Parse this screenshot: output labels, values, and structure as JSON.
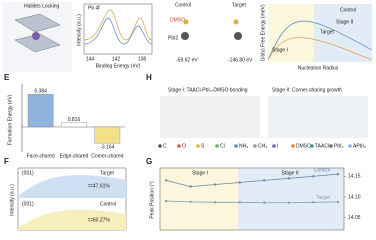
{
  "panel_b": {
    "title": "Halides Locking"
  },
  "panel_c": {
    "label": "Pb 4f",
    "y_label": "Intensity (a.u.)",
    "x_label": "Binding Energy (eV)",
    "xticks": [
      144,
      142,
      138
    ]
  },
  "panel_d": {
    "control": "Control",
    "target": "Target",
    "dmso": "DMSO",
    "pbi2": "PbI2",
    "control_energy": "-59.62 eV",
    "target_energy": "-146.80 eV"
  },
  "panel_gibbs": {
    "y_label": "Gibbs Free Energy (meV)",
    "curve_labels": [
      "Control",
      "Target"
    ],
    "stages": [
      "Stage I",
      "Stage II"
    ],
    "x_label": "Nucleation Radius"
  },
  "panel_e": {
    "letter": "E",
    "y_label": "Formation Energy (eV)",
    "categories": [
      "Face-shared",
      "Edge-shared",
      "Corner-shared"
    ],
    "values": [
      6.384,
      0.816,
      -3.164
    ],
    "colors": [
      "#8fb3dc",
      "#ffffff",
      "#f5e08a"
    ],
    "ylim": [
      -4.5,
      8
    ]
  },
  "panel_h": {
    "letter": "H",
    "stage1": "Stage I: TAACl-PbI₂-DMSO bonding",
    "stage2": "Stage II: Corner-sharing growth",
    "legend": [
      "C",
      "O",
      "S",
      "Cl",
      "NH₃",
      "CH₃",
      "I",
      "DMSO",
      "TAACl",
      "PbI₂",
      "APbI₃"
    ]
  },
  "panel_f": {
    "letter": "F",
    "y_label": "Intensity (a.u.)",
    "peak": "(001)",
    "target": "Target",
    "control": "Control",
    "target_ratio": "τ=47.61%",
    "control_ratio": "τ=60.27%"
  },
  "panel_g": {
    "letter": "G",
    "y_label": "Peak Position (°)",
    "stages": [
      "Stage I",
      "Stage II"
    ],
    "series": [
      {
        "name": "Control",
        "color": "#6d88aa",
        "values": [
          14.14,
          14.125,
          14.13,
          14.135,
          14.14,
          14.145,
          14.15,
          14.155
        ]
      },
      {
        "name": "Target",
        "color": "#8a9cb0",
        "values": [
          14.09,
          14.088,
          14.087,
          14.087,
          14.086,
          14.086,
          14.087,
          14.088
        ]
      }
    ],
    "y2lim": [
      14.02,
      14.17
    ],
    "y2ticks": [
      {
        "value": 14.15,
        "label": "14.15"
      },
      {
        "value": 14.1,
        "label": "14.10"
      },
      {
        "value": 14.05,
        "label": "14.05"
      }
    ]
  }
}
